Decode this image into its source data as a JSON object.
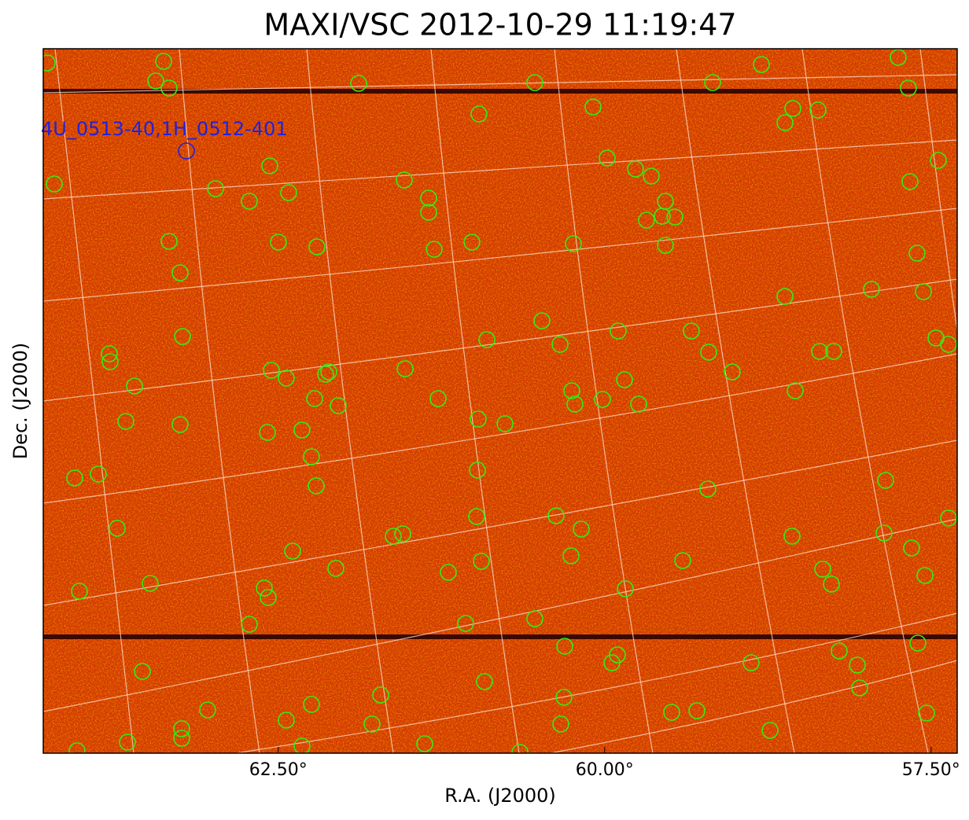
{
  "chart_data": {
    "type": "image",
    "title": "MAXI/VSC 2012-10-29 11:19:47",
    "xlabel": "R.A. (J2000)",
    "ylabel": "Dec. (J2000)",
    "annotation": "4U_0513-40,1H_0512-401",
    "xlim": [
      64.3,
      57.3
    ],
    "xticks": [
      {
        "value": 62.5,
        "label": "62.50°"
      },
      {
        "value": 60.0,
        "label": "60.00°"
      },
      {
        "value": 57.5,
        "label": "57.50°"
      }
    ]
  }
}
